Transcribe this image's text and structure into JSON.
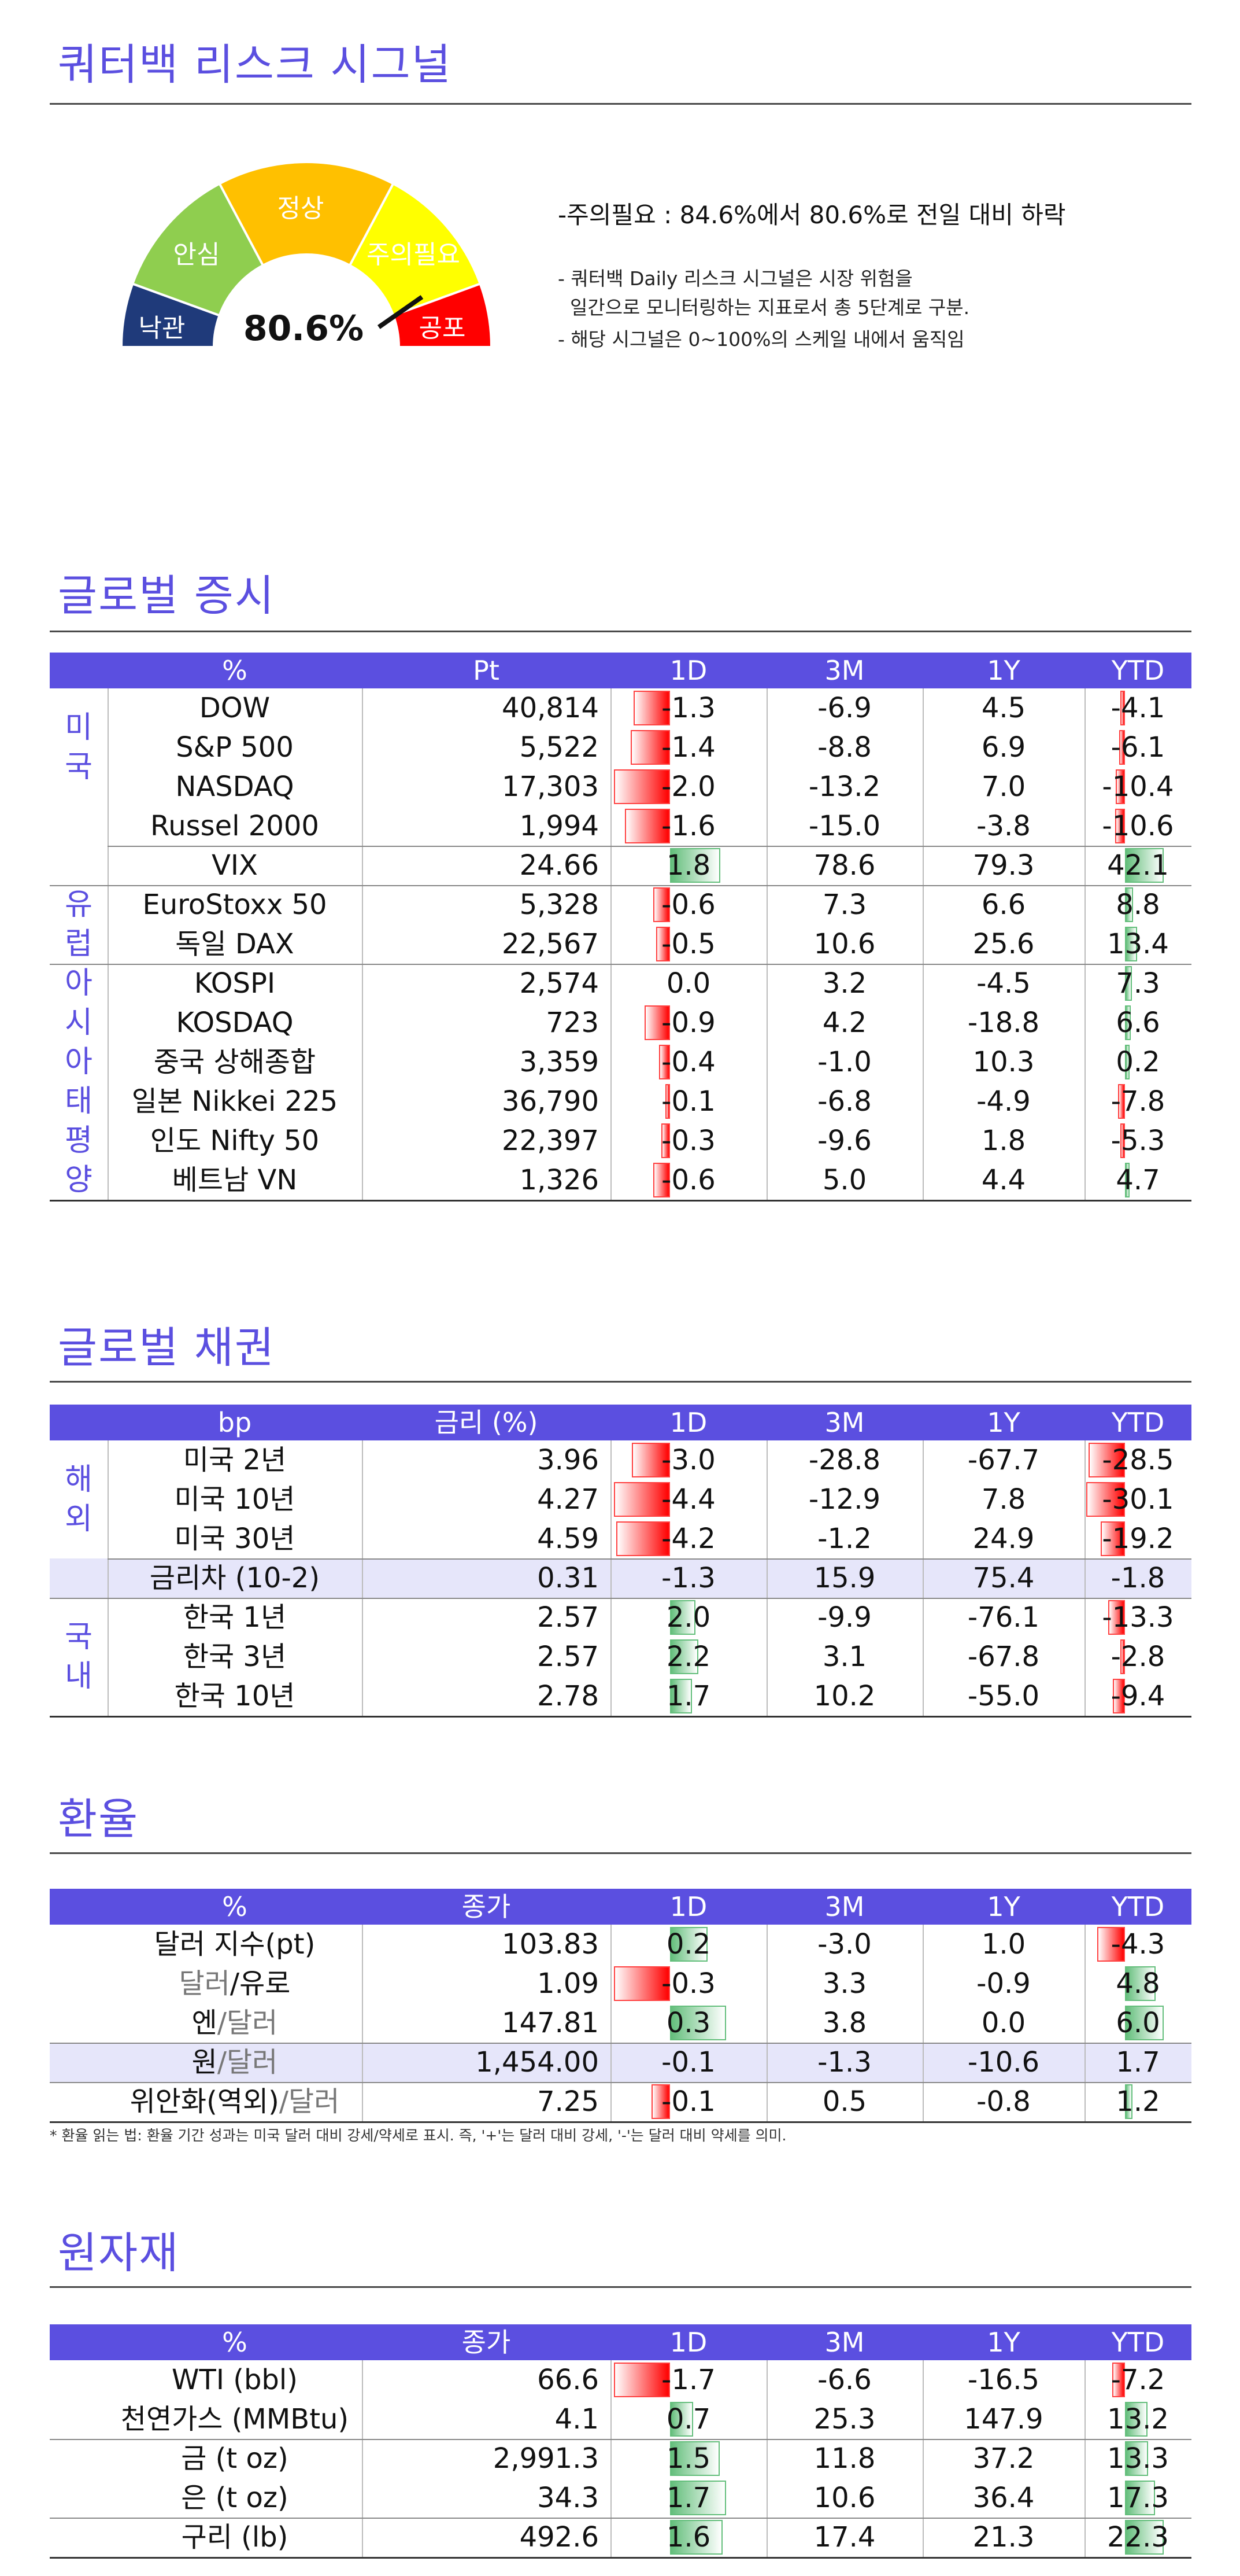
{
  "signal": {
    "title": "쿼터백 리스크 시그널",
    "value": "80.6%",
    "value_num": 80.6,
    "zones": [
      "낙관",
      "안심",
      "정상",
      "주의필요",
      "공포"
    ],
    "status": "-주의필요 : 84.6%에서 80.6%로 전일 대비 하락",
    "note1": "- 쿼터백 Daily 리스크 시그널은 시장 위험을",
    "note2": "  일간으로 모니터링하는 지표로서 총 5단계로 구분.",
    "note3": "- 해당 시그널은 0~100%의 스케일 내에서 움직임"
  },
  "colors": {
    "accent": "#5b4fe0",
    "neg": "#ff0000",
    "pos": "#63be7b",
    "zone1": "#1f3a7a",
    "zone2": "#8fce4f",
    "zone3": "#ffc000",
    "zone4": "#ffff00",
    "zone5": "#ff0000"
  },
  "equity": {
    "title": "글로벌 증시",
    "headers": [
      "%",
      "Pt",
      "1D",
      "3M",
      "1Y",
      "YTD"
    ],
    "groups": [
      {
        "label": [
          "미",
          "국"
        ]
      },
      {
        "label": [
          "유",
          "럽"
        ]
      },
      {
        "label": [
          "아",
          "시",
          "아",
          "태",
          "평",
          "양"
        ]
      }
    ],
    "rows": [
      {
        "name": "DOW",
        "v": "40,814",
        "d1": "-1.3",
        "m3": "-6.9",
        "y1": "4.5",
        "ytd": "-4.1",
        "d1n": -1.3,
        "ytdn": -4.1
      },
      {
        "name": "S&P 500",
        "v": "5,522",
        "d1": "-1.4",
        "m3": "-8.8",
        "y1": "6.9",
        "ytd": "-6.1",
        "d1n": -1.4,
        "ytdn": -6.1
      },
      {
        "name": "NASDAQ",
        "v": "17,303",
        "d1": "-2.0",
        "m3": "-13.2",
        "y1": "7.0",
        "ytd": "-10.4",
        "d1n": -2.0,
        "ytdn": -10.4
      },
      {
        "name": "Russel 2000",
        "v": "1,994",
        "d1": "-1.6",
        "m3": "-15.0",
        "y1": "-3.8",
        "ytd": "-10.6",
        "d1n": -1.6,
        "ytdn": -10.6
      },
      {
        "name": "VIX",
        "v": "24.66",
        "d1": "1.8",
        "m3": "78.6",
        "y1": "79.3",
        "ytd": "42.1",
        "d1n": 1.8,
        "ytdn": 42.1
      },
      {
        "name": "EuroStoxx 50",
        "v": "5,328",
        "d1": "-0.6",
        "m3": "7.3",
        "y1": "6.6",
        "ytd": "8.8",
        "d1n": -0.6,
        "ytdn": 8.8
      },
      {
        "name": "독일 DAX",
        "v": "22,567",
        "d1": "-0.5",
        "m3": "10.6",
        "y1": "25.6",
        "ytd": "13.4",
        "d1n": -0.5,
        "ytdn": 13.4
      },
      {
        "name": "KOSPI",
        "v": "2,574",
        "d1": "0.0",
        "m3": "3.2",
        "y1": "-4.5",
        "ytd": "7.3",
        "d1n": 0.0,
        "ytdn": 7.3
      },
      {
        "name": "KOSDAQ",
        "v": "723",
        "d1": "-0.9",
        "m3": "4.2",
        "y1": "-18.8",
        "ytd": "6.6",
        "d1n": -0.9,
        "ytdn": 6.6
      },
      {
        "name": "중국 상해종합",
        "v": "3,359",
        "d1": "-0.4",
        "m3": "-1.0",
        "y1": "10.3",
        "ytd": "0.2",
        "d1n": -0.4,
        "ytdn": 0.2
      },
      {
        "name": "일본 Nikkei 225",
        "v": "36,790",
        "d1": "-0.1",
        "m3": "-6.8",
        "y1": "-4.9",
        "ytd": "-7.8",
        "d1n": -0.1,
        "ytdn": -7.8
      },
      {
        "name": "인도 Nifty 50",
        "v": "22,397",
        "d1": "-0.3",
        "m3": "-9.6",
        "y1": "1.8",
        "ytd": "-5.3",
        "d1n": -0.3,
        "ytdn": -5.3
      },
      {
        "name": "베트남 VN",
        "v": "1,326",
        "d1": "-0.6",
        "m3": "5.0",
        "y1": "4.4",
        "ytd": "4.7",
        "d1n": -0.6,
        "ytdn": 4.7
      }
    ]
  },
  "bonds": {
    "title": "글로벌 채권",
    "headers": [
      "bp",
      "금리 (%)",
      "1D",
      "3M",
      "1Y",
      "YTD"
    ],
    "groups": [
      {
        "label": [
          "해",
          "외"
        ]
      },
      {
        "label": [
          "국",
          "내"
        ]
      }
    ],
    "rows": [
      {
        "name": "미국 2년",
        "v": "3.96",
        "d1": "-3.0",
        "m3": "-28.8",
        "y1": "-67.7",
        "ytd": "-28.5",
        "d1n": -3.0,
        "ytdn": -28.5
      },
      {
        "name": "미국 10년",
        "v": "4.27",
        "d1": "-4.4",
        "m3": "-12.9",
        "y1": "7.8",
        "ytd": "-30.1",
        "d1n": -4.4,
        "ytdn": -30.1
      },
      {
        "name": "미국 30년",
        "v": "4.59",
        "d1": "-4.2",
        "m3": "-1.2",
        "y1": "24.9",
        "ytd": "-19.2",
        "d1n": -4.2,
        "ytdn": -19.2
      },
      {
        "name": "금리차 (10-2)",
        "v": "0.31",
        "d1": "-1.3",
        "m3": "15.9",
        "y1": "75.4",
        "ytd": "-1.8"
      },
      {
        "name": "한국 1년",
        "v": "2.57",
        "d1": "2.0",
        "m3": "-9.9",
        "y1": "-76.1",
        "ytd": "-13.3",
        "d1n": 2.0,
        "ytdn": -13.3
      },
      {
        "name": "한국 3년",
        "v": "2.57",
        "d1": "2.2",
        "m3": "3.1",
        "y1": "-67.8",
        "ytd": "-2.8",
        "d1n": 2.2,
        "ytdn": -2.8
      },
      {
        "name": "한국 10년",
        "v": "2.78",
        "d1": "1.7",
        "m3": "10.2",
        "y1": "-55.0",
        "ytd": "-9.4",
        "d1n": 1.7,
        "ytdn": -9.4
      }
    ]
  },
  "fx": {
    "title": "환율",
    "headers": [
      "%",
      "종가",
      "1D",
      "3M",
      "1Y",
      "YTD"
    ],
    "rows": [
      {
        "name_a": "달러 지수(pt)",
        "name_b": "",
        "v": "103.83",
        "d1": "0.2",
        "m3": "-3.0",
        "y1": "1.0",
        "ytd": "-4.3",
        "d1n": 0.2,
        "ytdn": -4.3
      },
      {
        "name_a": "달러",
        "name_b": "/유로",
        "v": "1.09",
        "d1": "-0.3",
        "m3": "3.3",
        "y1": "-0.9",
        "ytd": "4.8",
        "d1n": -0.3,
        "ytdn": 4.8
      },
      {
        "name_a": "엔",
        "name_b": "/달러",
        "v": "147.81",
        "d1": "0.3",
        "m3": "3.8",
        "y1": "0.0",
        "ytd": "6.0",
        "d1n": 0.3,
        "ytdn": 6.0
      },
      {
        "name_a": "원",
        "name_b": "/달러",
        "v": "1,454.00",
        "d1": "-0.1",
        "m3": "-1.3",
        "y1": "-10.6",
        "ytd": "1.7",
        "d1n": -0.1,
        "ytdn": 1.7
      },
      {
        "name_a": "위안화(역외)",
        "name_b": "/달러",
        "v": "7.25",
        "d1": "-0.1",
        "m3": "0.5",
        "y1": "-0.8",
        "ytd": "1.2",
        "d1n": -0.1,
        "ytdn": 1.2
      }
    ],
    "footnote": "* 환율 읽는 법: 환율 기간 성과는 미국 달러 대비 강세/약세로 표시. 즉, '+'는 달러 대비 강세, '-'는 달러 대비 약세를 의미."
  },
  "commod": {
    "title": "원자재",
    "headers": [
      "%",
      "종가",
      "1D",
      "3M",
      "1Y",
      "YTD"
    ],
    "rows": [
      {
        "name": "WTI (bbl)",
        "v": "66.6",
        "d1": "-1.7",
        "m3": "-6.6",
        "y1": "-16.5",
        "ytd": "-7.2",
        "d1n": -1.7,
        "ytdn": -7.2
      },
      {
        "name": "천연가스 (MMBtu)",
        "v": "4.1",
        "d1": "0.7",
        "m3": "25.3",
        "y1": "147.9",
        "ytd": "13.2",
        "d1n": 0.7,
        "ytdn": 13.2
      },
      {
        "name": "금 (t oz)",
        "v": "2,991.3",
        "d1": "1.5",
        "m3": "11.8",
        "y1": "37.2",
        "ytd": "13.3",
        "d1n": 1.5,
        "ytdn": 13.3
      },
      {
        "name": "은 (t oz)",
        "v": "34.3",
        "d1": "1.7",
        "m3": "10.6",
        "y1": "36.4",
        "ytd": "17.3",
        "d1n": 1.7,
        "ytdn": 17.3
      },
      {
        "name": "구리 (lb)",
        "v": "492.6",
        "d1": "1.6",
        "m3": "17.4",
        "y1": "21.3",
        "ytd": "22.3",
        "d1n": 1.6,
        "ytdn": 22.3
      }
    ]
  }
}
